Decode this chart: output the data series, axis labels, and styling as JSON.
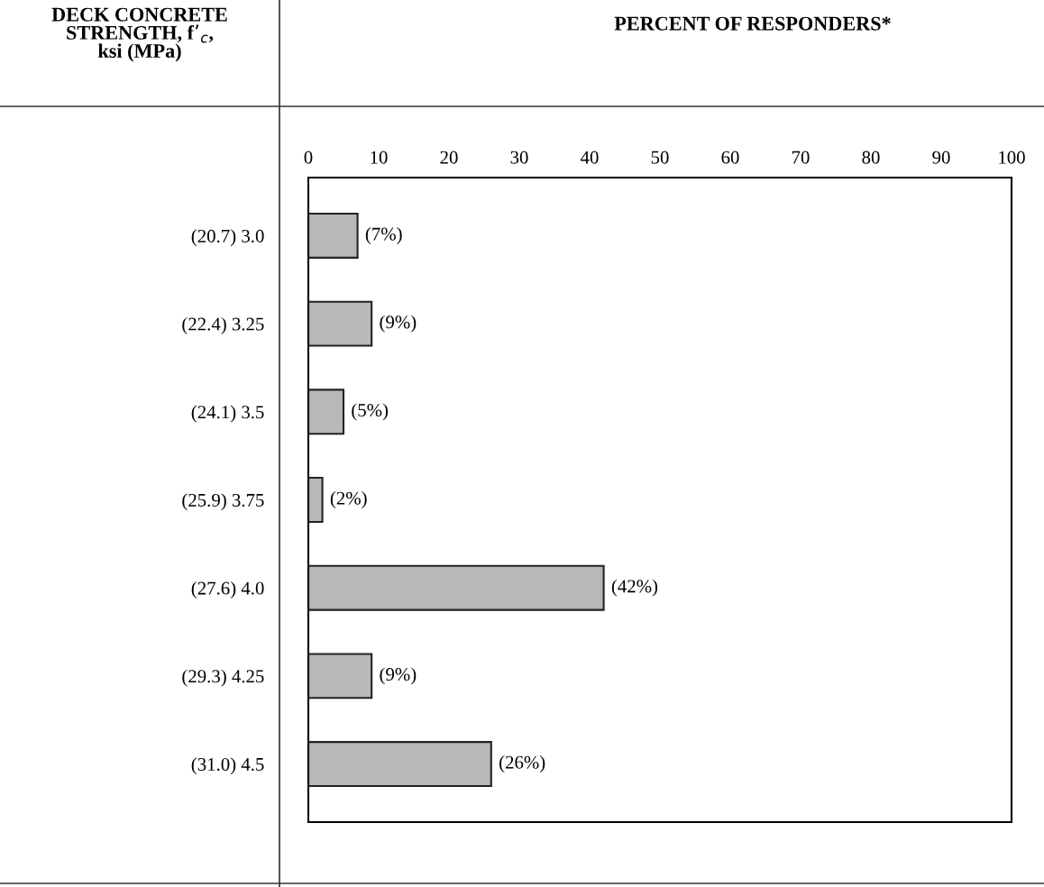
{
  "chart_data": {
    "type": "bar",
    "orientation": "horizontal",
    "title": "PERCENT OF RESPONDERS*",
    "annotations": [
      "DECK CONCRETE STRENGTH, f’$_{c}$, ksi (MPa)"
    ],
    "categories": [
      "(20.7) 3.0",
      "(22.4) 3.25",
      "(24.1) 3.5",
      "(25.9) 3.75",
      "(27.6) 4.0",
      "(29.3) 4.25",
      "(31.0) 4.5"
    ],
    "values": [
      7,
      9,
      5,
      2,
      42,
      9,
      26
    ],
    "value_labels": [
      "(7%)",
      "(9%)",
      "(5%)",
      "(2%)",
      "(42%)",
      "(9%)",
      "(26%)"
    ],
    "color": "#b8b8b8",
    "xlim": [
      0,
      100
    ],
    "xticks": [
      0,
      10,
      20,
      30,
      40,
      50,
      60,
      70,
      80,
      90,
      100
    ],
    "grid": false
  }
}
